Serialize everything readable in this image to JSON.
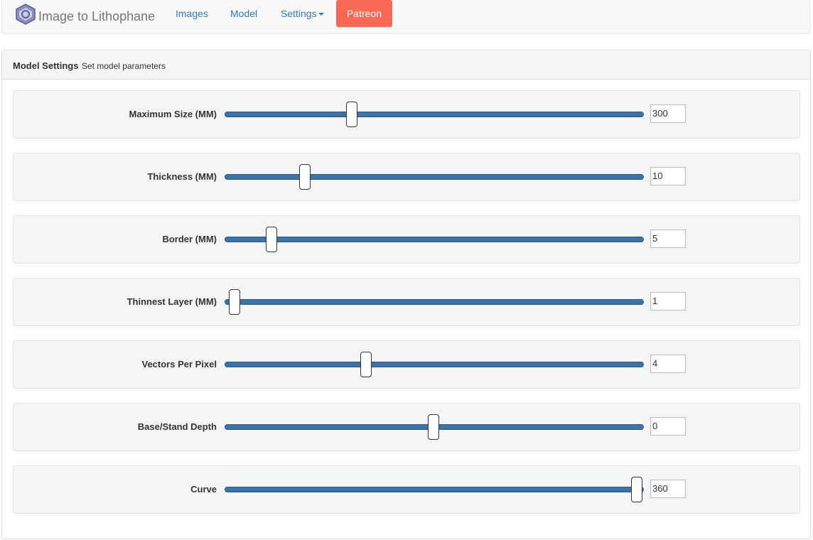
{
  "navbar": {
    "brand": "Image to Lithophane",
    "links": [
      "Images",
      "Model",
      "Settings"
    ],
    "button": "Patreon"
  },
  "panel": {
    "title": "Model Settings",
    "subtitle": "Set model parameters",
    "settings": [
      {
        "label": "Maximum Size (MM)",
        "value": 300
      },
      {
        "label": "Thickness (MM)",
        "value": 10
      },
      {
        "label": "Border (MM)",
        "value": 5
      },
      {
        "label": "Thinnest Layer (MM)",
        "value": 1
      },
      {
        "label": "Vectors Per Pixel",
        "value": 4
      },
      {
        "label": "Base/Stand Depth",
        "value": 0
      },
      {
        "label": "Curve",
        "value": 360
      }
    ]
  }
}
